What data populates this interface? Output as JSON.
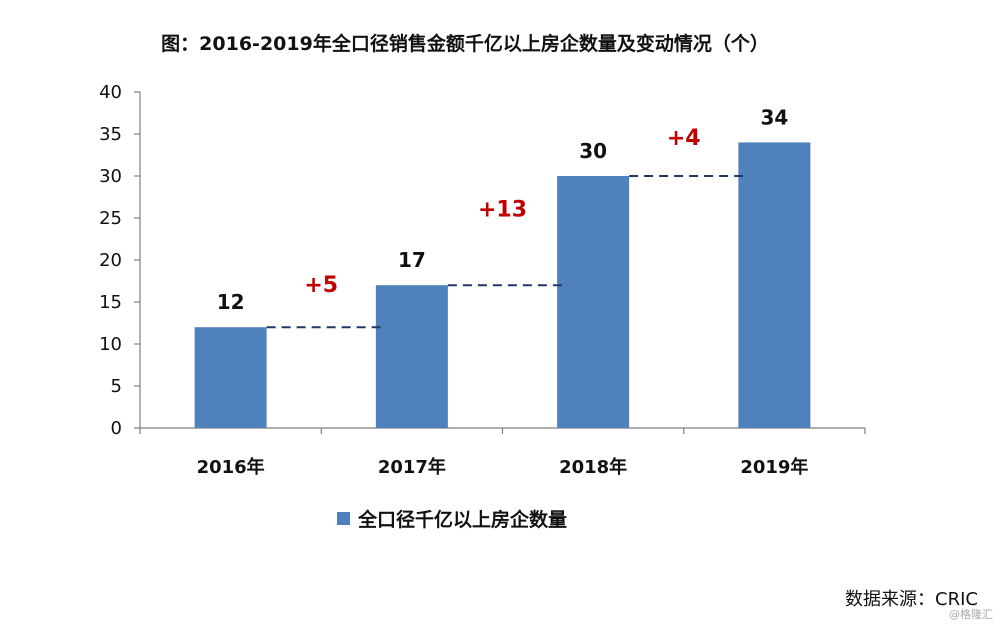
{
  "title": "图：2016-2019年全口径销售金额千亿以上房企数量及变动情况（个）",
  "source": "数据来源：CRIC",
  "watermark": "@格隆汇",
  "colors": {
    "bar": "#4f81bd",
    "delta": "#c00000",
    "connector": "#1f3864",
    "axis": "#7f7f7f"
  },
  "chart_data": {
    "type": "bar",
    "categories": [
      "2016年",
      "2017年",
      "2018年",
      "2019年"
    ],
    "series": [
      {
        "name": "全口径千亿以上房企数量",
        "values": [
          12,
          17,
          30,
          34
        ]
      }
    ],
    "value_labels": [
      "12",
      "17",
      "30",
      "34"
    ],
    "changes": [
      "+5",
      "+13",
      "+4"
    ],
    "ylim": [
      0,
      40
    ],
    "yticks": [
      "0",
      "5",
      "10",
      "15",
      "20",
      "25",
      "30",
      "35",
      "40"
    ],
    "grid": false,
    "legend_position": "bottom"
  }
}
